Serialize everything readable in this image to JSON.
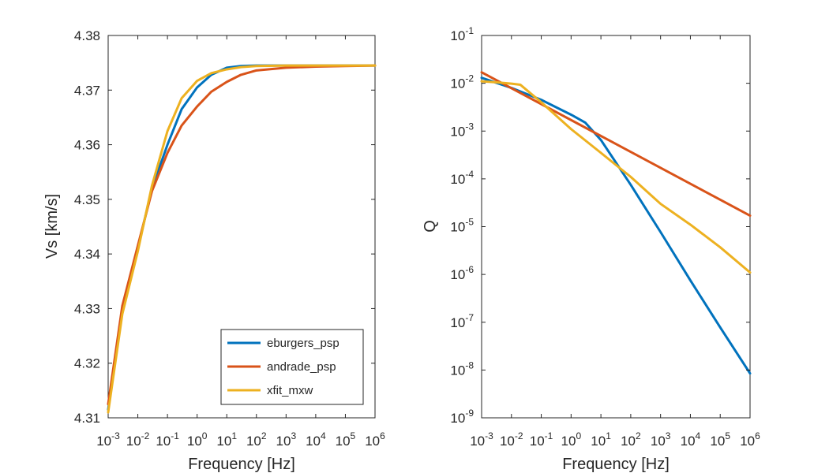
{
  "chart_data": [
    {
      "type": "line",
      "xscale": "log",
      "xlim": [
        0.001,
        1000000
      ],
      "ylim": [
        4.31,
        4.38
      ],
      "xlabel": "Frequency [Hz]",
      "ylabel": "Vs [km/s]",
      "xtick_exponents": [
        -3,
        -2,
        -1,
        0,
        1,
        2,
        3,
        4,
        5,
        6
      ],
      "ytick_labels": [
        "4.31",
        "4.32",
        "4.33",
        "4.34",
        "4.35",
        "4.36",
        "4.37",
        "4.38"
      ],
      "ytick_values": [
        4.31,
        4.32,
        4.33,
        4.34,
        4.35,
        4.36,
        4.37,
        4.38
      ],
      "legend": {
        "location": "bottom-right"
      },
      "series": [
        {
          "name": "eburgers_psp",
          "color": "#0072BD",
          "x": [
            0.001,
            0.003,
            0.01,
            0.03,
            0.1,
            0.3,
            1,
            3,
            10,
            30,
            100,
            1000,
            1000000
          ],
          "y": [
            4.3115,
            4.33,
            4.341,
            4.352,
            4.36,
            4.3665,
            4.3705,
            4.3728,
            4.3741,
            4.3744,
            4.3745,
            4.3745,
            4.3745
          ]
        },
        {
          "name": "andrade_psp",
          "color": "#D95319",
          "x": [
            0.001,
            0.003,
            0.01,
            0.03,
            0.1,
            0.3,
            1,
            3,
            10,
            30,
            100,
            1000,
            10000,
            100000,
            1000000
          ],
          "y": [
            4.3125,
            4.3305,
            4.3415,
            4.3515,
            4.3585,
            4.3635,
            4.367,
            4.3697,
            4.3715,
            4.3728,
            4.3736,
            4.3741,
            4.3743,
            4.3744,
            4.3745
          ]
        },
        {
          "name": "xfit_mxw",
          "color": "#EDB120",
          "x": [
            0.001,
            0.003,
            0.01,
            0.03,
            0.1,
            0.3,
            1,
            3,
            10,
            30,
            100,
            1000,
            1000000
          ],
          "y": [
            4.311,
            4.329,
            4.3405,
            4.3525,
            4.3625,
            4.3685,
            4.3717,
            4.3731,
            4.3738,
            4.3742,
            4.3744,
            4.3745,
            4.3745
          ]
        }
      ]
    },
    {
      "type": "line",
      "xscale": "log",
      "yscale": "log",
      "xlim": [
        0.001,
        1000000
      ],
      "ylim": [
        1e-09,
        0.1
      ],
      "xlabel": "Frequency [Hz]",
      "ylabel": "Q",
      "xtick_exponents": [
        -3,
        -2,
        -1,
        0,
        1,
        2,
        3,
        4,
        5,
        6
      ],
      "ytick_exponents": [
        -9,
        -8,
        -7,
        -6,
        -5,
        -4,
        -3,
        -2,
        -1
      ],
      "series": [
        {
          "name": "eburgers_psp",
          "color": "#0072BD",
          "x": [
            0.001,
            0.01,
            0.1,
            1,
            3,
            10,
            100,
            1000,
            10000,
            100000,
            1000000
          ],
          "y": [
            0.013,
            0.008,
            0.0045,
            0.0022,
            0.0015,
            0.00065,
            7.5e-05,
            7.7e-06,
            7.5e-07,
            7.8e-08,
            8.5e-09
          ]
        },
        {
          "name": "andrade_psp",
          "color": "#D95319",
          "x": [
            0.001,
            1000000
          ],
          "y": [
            0.017,
            1.7e-05
          ]
        },
        {
          "name": "xfit_mxw",
          "color": "#EDB120",
          "x": [
            0.001,
            0.003,
            0.01,
            0.02,
            0.1,
            1,
            10,
            100,
            1000,
            10000,
            100000,
            1000000
          ],
          "y": [
            0.011,
            0.0105,
            0.0098,
            0.0093,
            0.004,
            0.0011,
            0.00035,
            0.00011,
            3e-05,
            1.1e-05,
            3.7e-06,
            1.1e-06
          ]
        }
      ]
    }
  ]
}
